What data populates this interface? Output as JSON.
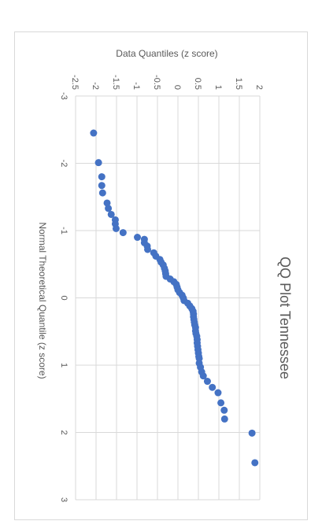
{
  "chart_data": {
    "type": "scatter",
    "title": "QQ Plot Tennessee",
    "xlabel": "Normal Theoretical Quantile (z score)",
    "ylabel": "Data Quantiles (z score)",
    "xlim": [
      -3,
      3
    ],
    "ylim": [
      -2.5,
      2
    ],
    "x_ticks": [
      "-3",
      "-2",
      "-1",
      "0",
      "1",
      "2",
      "3"
    ],
    "y_ticks": [
      "-2.5",
      "-2",
      "-1.5",
      "-1",
      "-0.5",
      "0",
      "0.5",
      "1",
      "1.5",
      "2"
    ],
    "grid": true,
    "legend": "none",
    "orientation": "rotated-90-clockwise",
    "colors": {
      "points": "#4472C4",
      "grid": "#D9D9D9",
      "text": "#595959",
      "border": "#D9D9D9"
    },
    "points": [
      {
        "x": -2.45,
        "y": -2.06
      },
      {
        "x": -2.01,
        "y": -1.94
      },
      {
        "x": -1.8,
        "y": -1.86
      },
      {
        "x": -1.67,
        "y": -1.86
      },
      {
        "x": -1.56,
        "y": -1.84
      },
      {
        "x": -1.41,
        "y": -1.73
      },
      {
        "x": -1.33,
        "y": -1.7
      },
      {
        "x": -1.24,
        "y": -1.63
      },
      {
        "x": -1.16,
        "y": -1.53
      },
      {
        "x": -1.1,
        "y": -1.53
      },
      {
        "x": -1.03,
        "y": -1.51
      },
      {
        "x": -0.97,
        "y": -1.34
      },
      {
        "x": -0.9,
        "y": -0.99
      },
      {
        "x": -0.87,
        "y": -0.82
      },
      {
        "x": -0.82,
        "y": -0.82
      },
      {
        "x": -0.77,
        "y": -0.75
      },
      {
        "x": -0.72,
        "y": -0.74
      },
      {
        "x": -0.67,
        "y": -0.59
      },
      {
        "x": -0.62,
        "y": -0.54
      },
      {
        "x": -0.57,
        "y": -0.44
      },
      {
        "x": -0.53,
        "y": -0.41
      },
      {
        "x": -0.49,
        "y": -0.36
      },
      {
        "x": -0.44,
        "y": -0.33
      },
      {
        "x": -0.4,
        "y": -0.31
      },
      {
        "x": -0.36,
        "y": -0.3
      },
      {
        "x": -0.32,
        "y": -0.29
      },
      {
        "x": -0.28,
        "y": -0.19
      },
      {
        "x": -0.24,
        "y": -0.1
      },
      {
        "x": -0.2,
        "y": -0.04
      },
      {
        "x": -0.16,
        "y": -0.02
      },
      {
        "x": -0.12,
        "y": 0.0
      },
      {
        "x": -0.08,
        "y": 0.04
      },
      {
        "x": -0.04,
        "y": 0.1
      },
      {
        "x": 0.0,
        "y": 0.13
      },
      {
        "x": 0.04,
        "y": 0.15
      },
      {
        "x": 0.08,
        "y": 0.24
      },
      {
        "x": 0.12,
        "y": 0.29
      },
      {
        "x": 0.16,
        "y": 0.34
      },
      {
        "x": 0.2,
        "y": 0.37
      },
      {
        "x": 0.24,
        "y": 0.38
      },
      {
        "x": 0.28,
        "y": 0.38
      },
      {
        "x": 0.32,
        "y": 0.39
      },
      {
        "x": 0.36,
        "y": 0.4
      },
      {
        "x": 0.4,
        "y": 0.41
      },
      {
        "x": 0.44,
        "y": 0.43
      },
      {
        "x": 0.49,
        "y": 0.43
      },
      {
        "x": 0.53,
        "y": 0.44
      },
      {
        "x": 0.57,
        "y": 0.46
      },
      {
        "x": 0.62,
        "y": 0.47
      },
      {
        "x": 0.67,
        "y": 0.47
      },
      {
        "x": 0.72,
        "y": 0.48
      },
      {
        "x": 0.77,
        "y": 0.49
      },
      {
        "x": 0.82,
        "y": 0.5
      },
      {
        "x": 0.87,
        "y": 0.51
      },
      {
        "x": 0.9,
        "y": 0.52
      },
      {
        "x": 0.97,
        "y": 0.52
      },
      {
        "x": 1.03,
        "y": 0.55
      },
      {
        "x": 1.1,
        "y": 0.58
      },
      {
        "x": 1.16,
        "y": 0.62
      },
      {
        "x": 1.24,
        "y": 0.72
      },
      {
        "x": 1.33,
        "y": 0.84
      },
      {
        "x": 1.41,
        "y": 0.98
      },
      {
        "x": 1.56,
        "y": 1.05
      },
      {
        "x": 1.67,
        "y": 1.13
      },
      {
        "x": 1.8,
        "y": 1.14
      },
      {
        "x": 2.01,
        "y": 1.81
      },
      {
        "x": 2.45,
        "y": 1.88
      }
    ]
  }
}
